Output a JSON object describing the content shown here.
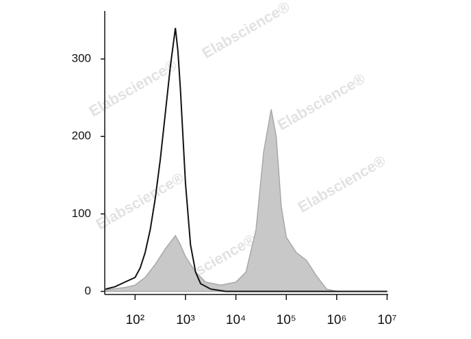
{
  "chart_data": {
    "type": "line",
    "watermark": "Elabscience®",
    "xscale": "log",
    "xlim": [
      25,
      10500000
    ],
    "ylim": [
      -4,
      362
    ],
    "xticks": [
      {
        "value": 100,
        "label": "10²"
      },
      {
        "value": 1000,
        "label": "10³"
      },
      {
        "value": 10000,
        "label": "10⁴"
      },
      {
        "value": 100000,
        "label": "10⁵"
      },
      {
        "value": 1000000,
        "label": "10⁶"
      },
      {
        "value": 10000000,
        "label": "10⁷"
      }
    ],
    "yticks": [
      0,
      100,
      200,
      300
    ],
    "series": [
      {
        "color": "#a8a8a8",
        "fill": "#c8c8c8",
        "x": [
          26,
          63,
          100,
          158,
          251,
          398,
          631,
          794,
          1000,
          1585,
          2512,
          5012,
          10000,
          15849,
          25119,
          35481,
          50119,
          63096,
          79433,
          100000,
          158489,
          251189,
          398107,
          630957,
          1000000,
          10000000
        ],
        "values": [
          2,
          5,
          8,
          18,
          35,
          55,
          72,
          60,
          45,
          25,
          12,
          8,
          12,
          25,
          80,
          180,
          235,
          200,
          110,
          70,
          50,
          40,
          20,
          3,
          0,
          0
        ]
      },
      {
        "color": "#111111",
        "x": [
          26,
          40,
          63,
          100,
          126,
          158,
          200,
          251,
          316,
          398,
          501,
          631,
          708,
          794,
          1000,
          1259,
          1585,
          1995,
          3162,
          6310,
          31623,
          10000000
        ],
        "values": [
          3,
          6,
          12,
          18,
          30,
          50,
          80,
          120,
          170,
          230,
          290,
          340,
          310,
          260,
          140,
          60,
          25,
          10,
          3,
          0,
          0,
          0
        ]
      }
    ]
  }
}
